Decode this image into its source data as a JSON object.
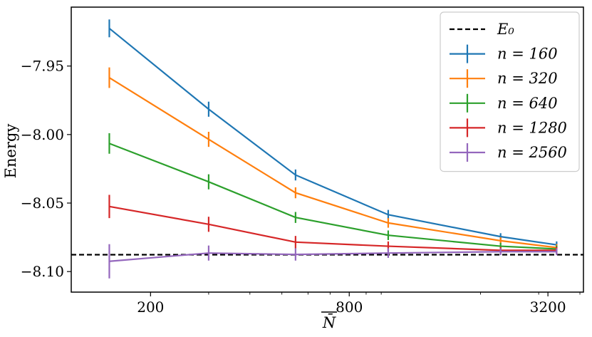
{
  "chart_data": {
    "type": "line",
    "xlabel": "N̄",
    "ylabel": "Energy",
    "xscale": "log2",
    "xlim": [
      115,
      4100
    ],
    "ylim": [
      -8.115,
      -7.907
    ],
    "x_ticks": [
      {
        "value": 200,
        "label": "200"
      },
      {
        "value": 800,
        "label": "800"
      },
      {
        "value": 3200,
        "label": "3200"
      }
    ],
    "y_ticks": [
      {
        "value": -7.95,
        "label": "−7.95"
      },
      {
        "value": -8.0,
        "label": "−8.00"
      },
      {
        "value": -8.05,
        "label": "−8.05"
      },
      {
        "value": -8.1,
        "label": "−8.10"
      }
    ],
    "grid": false,
    "legend_position": "top-right",
    "reference_line": {
      "name": "E₀",
      "y": -8.0877,
      "style": "dashed",
      "color": "#000000"
    },
    "x": [
      150,
      300,
      550,
      1050,
      2300,
      3400
    ],
    "series": [
      {
        "name": "n = 160",
        "color": "#1f77b4",
        "values": [
          -7.9225,
          -7.9815,
          -8.0295,
          -8.0585,
          -8.0745,
          -8.0805
        ],
        "errors": [
          0.0065,
          0.0055,
          0.004,
          0.0035,
          0.0025,
          0.0025
        ]
      },
      {
        "name": "n = 320",
        "color": "#ff7f0e",
        "values": [
          -7.9585,
          -8.0035,
          -8.0425,
          -8.0645,
          -8.0775,
          -8.0825
        ],
        "errors": [
          0.0075,
          0.0055,
          0.004,
          0.0035,
          0.0025,
          0.0025
        ]
      },
      {
        "name": "n = 640",
        "color": "#2ca02c",
        "values": [
          -8.0065,
          -8.0345,
          -8.0605,
          -8.0735,
          -8.0815,
          -8.0835
        ],
        "errors": [
          0.0075,
          0.0055,
          0.004,
          0.0035,
          0.0025,
          0.0025
        ]
      },
      {
        "name": "n = 1280",
        "color": "#d62728",
        "values": [
          -8.0525,
          -8.0655,
          -8.0785,
          -8.0815,
          -8.0845,
          -8.0845
        ],
        "errors": [
          0.0085,
          0.0055,
          0.0045,
          0.0035,
          0.0025,
          0.0025
        ]
      },
      {
        "name": "n = 2560",
        "color": "#9467bd",
        "values": [
          -8.0925,
          -8.0865,
          -8.0875,
          -8.0865,
          -8.0855,
          -8.0855
        ],
        "errors": [
          0.0125,
          0.0055,
          0.0045,
          0.0035,
          0.0025,
          0.0025
        ]
      }
    ]
  }
}
